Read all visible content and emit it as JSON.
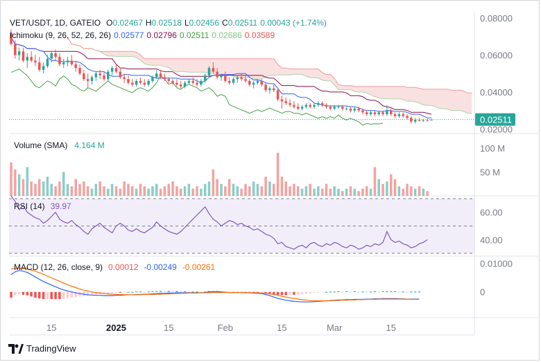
{
  "colors": {
    "up": "#26a69a",
    "down": "#ef5350",
    "tenkan": "#2962ff",
    "kijun": "#880e4f",
    "chikou": "#43a047",
    "spanA": "#a5d6a7",
    "spanB": "#ef9a9a",
    "rsi": "#7e57c2",
    "macd": "#2962ff",
    "signal": "#ff6d00",
    "price_badge": "#26a69a"
  },
  "header": {
    "symbol": "VET/USDT, 1D, GATEIO",
    "o_label": "O",
    "o_value": "0.02467",
    "h_label": "H",
    "h_value": "0.02518",
    "l_label": "L",
    "l_value": "0.02456",
    "c_label": "C",
    "c_value": "0.02511",
    "change": "0.00043 (+1.74%)"
  },
  "ichimoku": {
    "label": "Ichimoku (9, 26, 52, 26, 26)",
    "tenkan": "0.02577",
    "kijun": "0.02796",
    "chikou": "0.02511",
    "span_a": "0.02686",
    "span_b": "0.03589"
  },
  "volume": {
    "label": "Volume (SMA)",
    "value": "4.164 M"
  },
  "rsi": {
    "label": "RSI (14)",
    "value": "39.97"
  },
  "macd": {
    "label": "MACD (12, 26, close, 9)",
    "hist": "0.00012",
    "macd": "-0.00249",
    "signal": "-0.00261"
  },
  "price_badge": "0.02511",
  "footer": {
    "brand": "TradingView"
  },
  "chart_data": [
    {
      "type": "candlestick",
      "title": "VET/USDT, 1D, GATEIO",
      "x_ticks": [
        "15",
        "2025",
        "15",
        "Feb",
        "15",
        "Mar",
        "15"
      ],
      "y_ticks": [
        "0.08000",
        "0.06000",
        "0.04000",
        "0.02000"
      ],
      "ylim": [
        0.0175,
        0.0838
      ],
      "last_price": 0.02511,
      "grid": false,
      "ohlc": [
        [
          0.072,
          0.074,
          0.065,
          0.066
        ],
        [
          0.066,
          0.068,
          0.058,
          0.06
        ],
        [
          0.06,
          0.064,
          0.057,
          0.062
        ],
        [
          0.062,
          0.064,
          0.056,
          0.057
        ],
        [
          0.057,
          0.061,
          0.053,
          0.059
        ],
        [
          0.059,
          0.062,
          0.056,
          0.057
        ],
        [
          0.057,
          0.06,
          0.054,
          0.056
        ],
        [
          0.056,
          0.059,
          0.051,
          0.052
        ],
        [
          0.052,
          0.056,
          0.05,
          0.054
        ],
        [
          0.054,
          0.06,
          0.053,
          0.058
        ],
        [
          0.058,
          0.062,
          0.056,
          0.061
        ],
        [
          0.061,
          0.063,
          0.057,
          0.059
        ],
        [
          0.059,
          0.061,
          0.054,
          0.055
        ],
        [
          0.055,
          0.058,
          0.053,
          0.056
        ],
        [
          0.056,
          0.059,
          0.054,
          0.057
        ],
        [
          0.057,
          0.06,
          0.054,
          0.055
        ],
        [
          0.055,
          0.057,
          0.051,
          0.053
        ],
        [
          0.053,
          0.055,
          0.049,
          0.05
        ],
        [
          0.05,
          0.052,
          0.046,
          0.047
        ],
        [
          0.047,
          0.05,
          0.042,
          0.046
        ],
        [
          0.046,
          0.049,
          0.044,
          0.048
        ],
        [
          0.048,
          0.051,
          0.046,
          0.05
        ],
        [
          0.05,
          0.052,
          0.047,
          0.049
        ],
        [
          0.049,
          0.051,
          0.046,
          0.047
        ],
        [
          0.047,
          0.052,
          0.046,
          0.051
        ],
        [
          0.051,
          0.054,
          0.049,
          0.053
        ],
        [
          0.053,
          0.055,
          0.05,
          0.051
        ],
        [
          0.051,
          0.053,
          0.047,
          0.048
        ],
        [
          0.048,
          0.05,
          0.045,
          0.047
        ],
        [
          0.047,
          0.049,
          0.044,
          0.045
        ],
        [
          0.045,
          0.047,
          0.043,
          0.044
        ],
        [
          0.044,
          0.047,
          0.043,
          0.046
        ],
        [
          0.046,
          0.048,
          0.044,
          0.045
        ],
        [
          0.045,
          0.047,
          0.043,
          0.044
        ],
        [
          0.044,
          0.047,
          0.043,
          0.046
        ],
        [
          0.046,
          0.049,
          0.045,
          0.048
        ],
        [
          0.048,
          0.052,
          0.047,
          0.05
        ],
        [
          0.05,
          0.052,
          0.047,
          0.048
        ],
        [
          0.048,
          0.05,
          0.046,
          0.047
        ],
        [
          0.047,
          0.048,
          0.045,
          0.046
        ],
        [
          0.046,
          0.047,
          0.044,
          0.045
        ],
        [
          0.045,
          0.047,
          0.043,
          0.044
        ],
        [
          0.044,
          0.046,
          0.042,
          0.043
        ],
        [
          0.043,
          0.046,
          0.042,
          0.045
        ],
        [
          0.045,
          0.047,
          0.044,
          0.046
        ],
        [
          0.046,
          0.048,
          0.044,
          0.045
        ],
        [
          0.045,
          0.047,
          0.043,
          0.044
        ],
        [
          0.044,
          0.047,
          0.043,
          0.046
        ],
        [
          0.046,
          0.05,
          0.045,
          0.049
        ],
        [
          0.049,
          0.054,
          0.048,
          0.053
        ],
        [
          0.053,
          0.056,
          0.05,
          0.051
        ],
        [
          0.051,
          0.053,
          0.047,
          0.048
        ],
        [
          0.048,
          0.05,
          0.046,
          0.049
        ],
        [
          0.049,
          0.051,
          0.045,
          0.046
        ],
        [
          0.046,
          0.048,
          0.044,
          0.045
        ],
        [
          0.045,
          0.048,
          0.044,
          0.047
        ],
        [
          0.047,
          0.049,
          0.045,
          0.048
        ],
        [
          0.048,
          0.05,
          0.046,
          0.047
        ],
        [
          0.047,
          0.049,
          0.045,
          0.046
        ],
        [
          0.046,
          0.047,
          0.043,
          0.044
        ],
        [
          0.044,
          0.046,
          0.042,
          0.045
        ],
        [
          0.045,
          0.047,
          0.044,
          0.046
        ],
        [
          0.046,
          0.047,
          0.043,
          0.044
        ],
        [
          0.044,
          0.045,
          0.04,
          0.041
        ],
        [
          0.041,
          0.043,
          0.039,
          0.042
        ],
        [
          0.042,
          0.044,
          0.04,
          0.041
        ],
        [
          0.041,
          0.042,
          0.035,
          0.036
        ],
        [
          0.036,
          0.038,
          0.031,
          0.035
        ],
        [
          0.035,
          0.037,
          0.033,
          0.034
        ],
        [
          0.034,
          0.036,
          0.032,
          0.033
        ],
        [
          0.033,
          0.035,
          0.031,
          0.032
        ],
        [
          0.032,
          0.034,
          0.03,
          0.031
        ],
        [
          0.031,
          0.033,
          0.03,
          0.032
        ],
        [
          0.032,
          0.034,
          0.031,
          0.033
        ],
        [
          0.033,
          0.034,
          0.031,
          0.032
        ],
        [
          0.032,
          0.034,
          0.031,
          0.033
        ],
        [
          0.033,
          0.035,
          0.032,
          0.034
        ],
        [
          0.034,
          0.035,
          0.032,
          0.033
        ],
        [
          0.033,
          0.034,
          0.031,
          0.032
        ],
        [
          0.032,
          0.033,
          0.03,
          0.031
        ],
        [
          0.031,
          0.033,
          0.03,
          0.032
        ],
        [
          0.032,
          0.033,
          0.031,
          0.032
        ],
        [
          0.032,
          0.033,
          0.03,
          0.031
        ],
        [
          0.031,
          0.032,
          0.03,
          0.031
        ],
        [
          0.031,
          0.032,
          0.029,
          0.03
        ],
        [
          0.03,
          0.032,
          0.029,
          0.031
        ],
        [
          0.031,
          0.032,
          0.029,
          0.03
        ],
        [
          0.03,
          0.031,
          0.028,
          0.029
        ],
        [
          0.029,
          0.03,
          0.027,
          0.028
        ],
        [
          0.028,
          0.03,
          0.027,
          0.029
        ],
        [
          0.029,
          0.03,
          0.027,
          0.028
        ],
        [
          0.028,
          0.03,
          0.027,
          0.029
        ],
        [
          0.029,
          0.03,
          0.027,
          0.028
        ],
        [
          0.028,
          0.033,
          0.027,
          0.03
        ],
        [
          0.03,
          0.031,
          0.027,
          0.028
        ],
        [
          0.028,
          0.029,
          0.026,
          0.027
        ],
        [
          0.027,
          0.029,
          0.026,
          0.028
        ],
        [
          0.028,
          0.029,
          0.026,
          0.027
        ],
        [
          0.027,
          0.028,
          0.025,
          0.026
        ],
        [
          0.026,
          0.027,
          0.023,
          0.024
        ],
        [
          0.024,
          0.026,
          0.023,
          0.025
        ],
        [
          0.025,
          0.026,
          0.024,
          0.0245
        ],
        [
          0.0245,
          0.0255,
          0.0238,
          0.0248
        ],
        [
          0.0248,
          0.0256,
          0.024,
          0.0247
        ],
        [
          0.02467,
          0.02518,
          0.02456,
          0.02511
        ]
      ]
    },
    {
      "type": "bar",
      "title": "Volume (SMA)",
      "y_ticks": [
        "100 M",
        "50 M"
      ],
      "ylim": [
        0,
        130
      ],
      "values": [
        70,
        55,
        45,
        35,
        60,
        30,
        25,
        35,
        30,
        40,
        25,
        20,
        30,
        50,
        25,
        20,
        35,
        25,
        30,
        20,
        15,
        25,
        30,
        20,
        15,
        25,
        20,
        15,
        30,
        25,
        20,
        15,
        25,
        20,
        15,
        20,
        25,
        15,
        20,
        25,
        30,
        20,
        15,
        20,
        25,
        15,
        20,
        15,
        25,
        30,
        55,
        35,
        25,
        20,
        35,
        25,
        20,
        15,
        25,
        20,
        30,
        25,
        20,
        40,
        30,
        25,
        90,
        40,
        30,
        20,
        25,
        20,
        15,
        20,
        25,
        15,
        20,
        15,
        25,
        15,
        20,
        15,
        10,
        15,
        20,
        15,
        10,
        15,
        20,
        15,
        60,
        35,
        25,
        30,
        45,
        35,
        20,
        15,
        25,
        20,
        15,
        20,
        15,
        10
      ]
    },
    {
      "type": "line",
      "title": "RSI (14)",
      "y_ticks": [
        "60.00",
        "40.00"
      ],
      "ylim": [
        28,
        72
      ],
      "values": [
        72,
        68,
        62,
        65,
        60,
        58,
        56,
        55,
        52,
        54,
        57,
        60,
        55,
        53,
        52,
        54,
        51,
        49,
        46,
        44,
        48,
        50,
        52,
        49,
        47,
        45,
        50,
        52,
        50,
        47,
        46,
        48,
        46,
        45,
        47,
        49,
        53,
        50,
        48,
        46,
        45,
        44,
        46,
        49,
        52,
        55,
        58,
        61,
        64,
        59,
        55,
        53,
        50,
        52,
        54,
        53,
        51,
        52,
        50,
        49,
        47,
        48,
        46,
        44,
        43,
        41,
        37,
        38,
        35,
        34,
        33,
        35,
        36,
        34,
        37,
        38,
        36,
        35,
        37,
        36,
        38,
        37,
        35,
        34,
        36,
        35,
        33,
        34,
        36,
        35,
        37,
        36,
        38,
        46,
        40,
        38,
        39,
        37,
        36,
        34,
        35,
        37,
        38,
        39.97
      ]
    },
    {
      "type": "line",
      "title": "MACD (12, 26, close, 9)",
      "y_ticks": [
        "0.01000",
        "0"
      ],
      "ylim": [
        -0.009,
        0.0125
      ],
      "series": [
        {
          "name": "MACD",
          "values": [
            0.006,
            0.007,
            0.0075,
            0.0072,
            0.0068,
            0.006,
            0.0052,
            0.0044,
            0.0036,
            0.003,
            0.0024,
            0.0018,
            0.0012,
            0.0007,
            0.0003,
            0.0,
            -0.0003,
            -0.0006,
            -0.0008,
            -0.001,
            -0.0011,
            -0.0012,
            -0.0012,
            -0.0013,
            -0.0013,
            -0.0013,
            -0.0012,
            -0.0012,
            -0.0011,
            -0.001,
            -0.001,
            -0.0009,
            -0.0009,
            -0.0008,
            -0.0008,
            -0.0007,
            -0.0006,
            -0.0005,
            -0.0005,
            -0.0004,
            -0.0004,
            -0.0003,
            -0.0003,
            -0.0003,
            -0.0003,
            -0.0003,
            -0.0003,
            -0.0003,
            -0.0002,
            0.0,
            0.0001,
            0.0001,
            0.0,
            -0.0001,
            -0.0002,
            -0.0002,
            -0.0002,
            -0.0002,
            -0.0003,
            -0.0003,
            -0.0004,
            -0.0005,
            -0.0006,
            -0.0009,
            -0.0013,
            -0.0018,
            -0.0022,
            -0.0026,
            -0.0029,
            -0.0031,
            -0.0033,
            -0.0034,
            -0.0035,
            -0.0035,
            -0.0035,
            -0.0034,
            -0.0033,
            -0.0032,
            -0.0031,
            -0.003,
            -0.0029,
            -0.0028,
            -0.0028,
            -0.0027,
            -0.0027,
            -0.0026,
            -0.0026,
            -0.0026,
            -0.0025,
            -0.0025,
            -0.0024,
            -0.0024,
            -0.0023,
            -0.0023,
            -0.0023,
            -0.0023,
            -0.0024,
            -0.0024,
            -0.0025,
            -0.0025,
            -0.0025,
            -0.00249
          ]
        },
        {
          "name": "Signal",
          "values": [
            0.008,
            0.0082,
            0.0083,
            0.0082,
            0.008,
            0.0076,
            0.0072,
            0.0067,
            0.0061,
            0.0055,
            0.0049,
            0.0043,
            0.0037,
            0.0031,
            0.0025,
            0.002,
            0.0015,
            0.001,
            0.0006,
            0.0003,
            0.0,
            -0.0002,
            -0.0004,
            -0.0006,
            -0.0007,
            -0.0008,
            -0.0009,
            -0.0009,
            -0.001,
            -0.001,
            -0.001,
            -0.001,
            -0.001,
            -0.0009,
            -0.0009,
            -0.0009,
            -0.0008,
            -0.0008,
            -0.0007,
            -0.0007,
            -0.0006,
            -0.0006,
            -0.0005,
            -0.0005,
            -0.0004,
            -0.0004,
            -0.0004,
            -0.0003,
            -0.0003,
            -0.0003,
            -0.0002,
            -0.0002,
            -0.0002,
            -0.0002,
            -0.0002,
            -0.0002,
            -0.0002,
            -0.0002,
            -0.0002,
            -0.0003,
            -0.0003,
            -0.0003,
            -0.0004,
            -0.0005,
            -0.0007,
            -0.0009,
            -0.0012,
            -0.0015,
            -0.0018,
            -0.0021,
            -0.0023,
            -0.0025,
            -0.0027,
            -0.0029,
            -0.003,
            -0.0031,
            -0.0031,
            -0.0031,
            -0.0031,
            -0.0031,
            -0.003,
            -0.003,
            -0.0029,
            -0.0029,
            -0.0028,
            -0.0028,
            -0.0027,
            -0.0027,
            -0.0026,
            -0.0026,
            -0.0026,
            -0.0025,
            -0.0025,
            -0.0025,
            -0.0025,
            -0.0025,
            -0.0025,
            -0.0025,
            -0.0025,
            -0.0026,
            -0.0026,
            -0.00261
          ]
        }
      ]
    }
  ]
}
